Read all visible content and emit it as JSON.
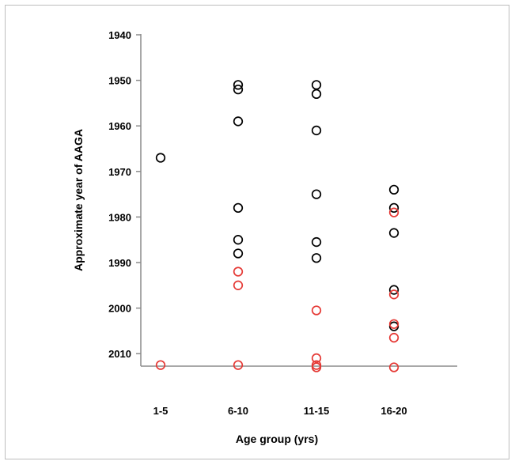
{
  "chart_data": {
    "type": "scatter",
    "xlabel": "Age group (yrs)",
    "ylabel": "Approximate year of AAGA",
    "categories": [
      "1-5",
      "6-10",
      "11-15",
      "16-20"
    ],
    "y_ticks": [
      "1940",
      "1950",
      "1960",
      "1970",
      "1980",
      "1990",
      "2000",
      "2010"
    ],
    "ylim": [
      1940,
      2013
    ],
    "y_reversed": true,
    "grid": false,
    "series": [
      {
        "color": "#000000",
        "points": [
          {
            "x": "1-5",
            "y": 1967
          },
          {
            "x": "6-10",
            "y": 1951
          },
          {
            "x": "6-10",
            "y": 1952
          },
          {
            "x": "6-10",
            "y": 1959
          },
          {
            "x": "6-10",
            "y": 1978
          },
          {
            "x": "6-10",
            "y": 1985
          },
          {
            "x": "6-10",
            "y": 1988
          },
          {
            "x": "11-15",
            "y": 1951
          },
          {
            "x": "11-15",
            "y": 1953
          },
          {
            "x": "11-15",
            "y": 1961
          },
          {
            "x": "11-15",
            "y": 1975
          },
          {
            "x": "11-15",
            "y": 1985.5
          },
          {
            "x": "11-15",
            "y": 1989
          },
          {
            "x": "16-20",
            "y": 1974
          },
          {
            "x": "16-20",
            "y": 1978
          },
          {
            "x": "16-20",
            "y": 1983.5
          },
          {
            "x": "16-20",
            "y": 1996
          },
          {
            "x": "16-20",
            "y": 2004
          }
        ]
      },
      {
        "color": "#e53935",
        "points": [
          {
            "x": "1-5",
            "y": 2012.5
          },
          {
            "x": "6-10",
            "y": 1992
          },
          {
            "x": "6-10",
            "y": 1995
          },
          {
            "x": "6-10",
            "y": 2012.5
          },
          {
            "x": "11-15",
            "y": 2000.5
          },
          {
            "x": "11-15",
            "y": 2011
          },
          {
            "x": "11-15",
            "y": 2012.5
          },
          {
            "x": "11-15",
            "y": 2013
          },
          {
            "x": "16-20",
            "y": 1979
          },
          {
            "x": "16-20",
            "y": 1997
          },
          {
            "x": "16-20",
            "y": 2003.5
          },
          {
            "x": "16-20",
            "y": 2006.5
          },
          {
            "x": "16-20",
            "y": 2013
          }
        ]
      }
    ]
  }
}
